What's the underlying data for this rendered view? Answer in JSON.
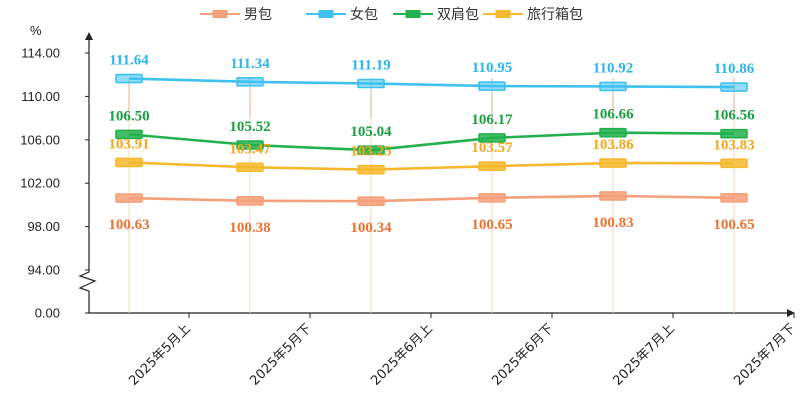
{
  "chart_data": {
    "type": "line",
    "unit": "%",
    "categories": [
      "2025年5月上",
      "2025年5月下",
      "2025年6月上",
      "2025年6月下",
      "2025年7月上",
      "2025年7月下"
    ],
    "series": [
      {
        "name": "男包",
        "color": "#F4A07A",
        "values": [
          100.63,
          100.38,
          100.34,
          100.65,
          100.83,
          100.65
        ]
      },
      {
        "name": "女包",
        "color": "#3EC1EF",
        "values": [
          111.64,
          111.34,
          111.19,
          110.95,
          110.92,
          110.86
        ]
      },
      {
        "name": "双肩包",
        "color": "#22B14C",
        "values": [
          106.5,
          105.52,
          105.04,
          106.17,
          106.66,
          106.56
        ]
      },
      {
        "name": "旅行箱包",
        "color": "#F5B82E",
        "values": [
          103.91,
          103.47,
          103.25,
          103.57,
          103.86,
          103.83
        ]
      }
    ],
    "label_colors": {
      "男包": "#ED7230",
      "女包": "#2CB5EA",
      "双肩包": "#1AA03F",
      "旅行箱包": "#F3A71E"
    },
    "y_ticks": [
      "0.00",
      "94.00",
      "98.00",
      "102.00",
      "106.00",
      "110.00",
      "114.00"
    ],
    "ylim": [
      94,
      114
    ],
    "axis_break": true,
    "grid": false,
    "legend": "top-center"
  }
}
